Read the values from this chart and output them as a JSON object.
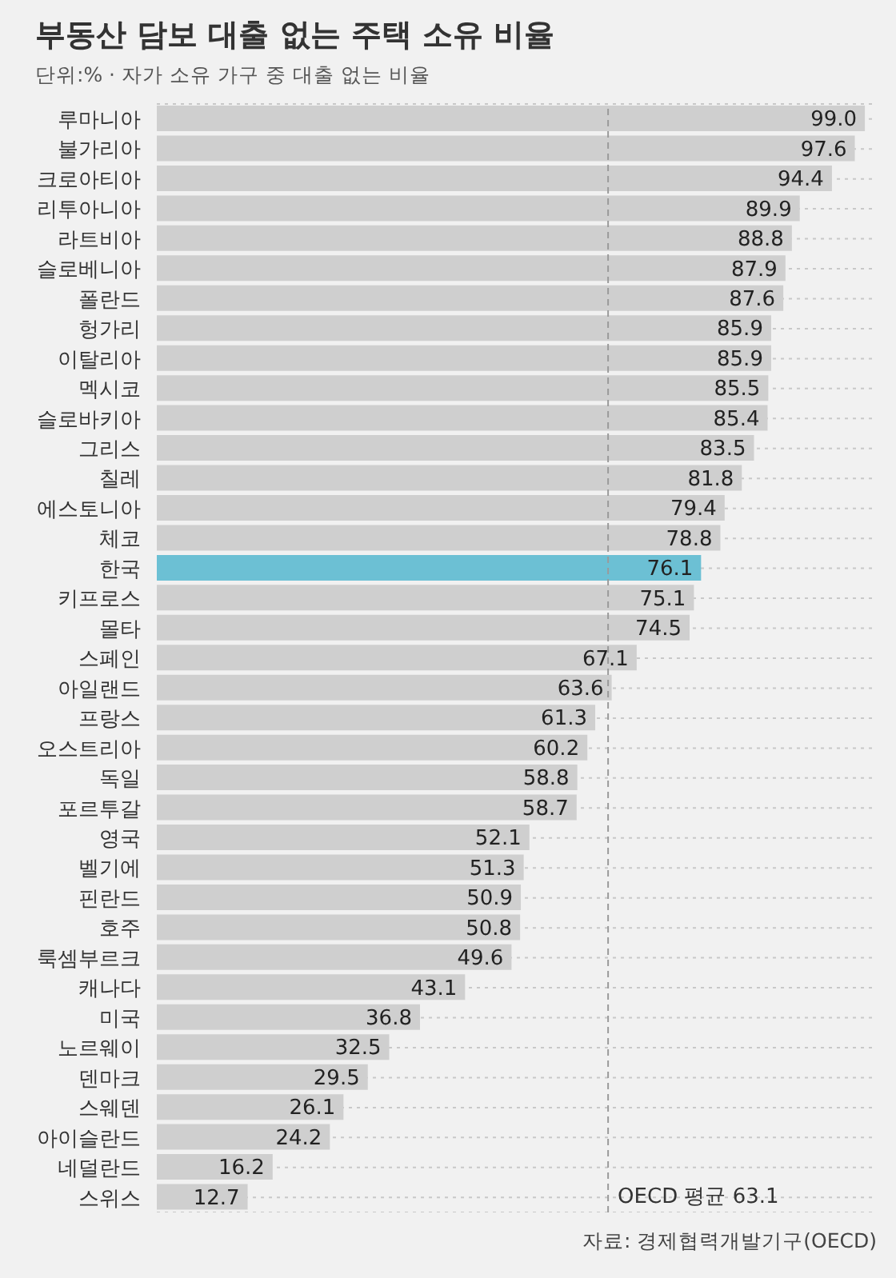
{
  "chart_data": {
    "type": "bar",
    "orientation": "horizontal",
    "title": "부동산 담보 대출 없는 주택 소유 비율",
    "subtitle": "단위:% · 자가 소유 가구 중 대출 없는 비율",
    "categories": [
      "루마니아",
      "불가리아",
      "크로아티아",
      "리투아니아",
      "라트비아",
      "슬로베니아",
      "폴란드",
      "헝가리",
      "이탈리아",
      "멕시코",
      "슬로바키아",
      "그리스",
      "칠레",
      "에스토니아",
      "체코",
      "한국",
      "키프로스",
      "몰타",
      "스페인",
      "아일랜드",
      "프랑스",
      "오스트리아",
      "독일",
      "포르투갈",
      "영국",
      "벨기에",
      "핀란드",
      "호주",
      "룩셈부르크",
      "캐나다",
      "미국",
      "노르웨이",
      "덴마크",
      "스웨덴",
      "아이슬란드",
      "네덜란드",
      "스위스"
    ],
    "values": [
      99.0,
      97.6,
      94.4,
      89.9,
      88.8,
      87.9,
      87.6,
      85.9,
      85.9,
      85.5,
      85.4,
      83.5,
      81.8,
      79.4,
      78.8,
      76.1,
      75.1,
      74.5,
      67.1,
      63.6,
      61.3,
      60.2,
      58.8,
      58.7,
      52.1,
      51.3,
      50.9,
      50.8,
      49.6,
      43.1,
      36.8,
      32.5,
      29.5,
      26.1,
      24.2,
      16.2,
      12.7
    ],
    "value_labels": [
      "99.0",
      "97.6",
      "94.4",
      "89.9",
      "88.8",
      "87.9",
      "87.6",
      "85.9",
      "85.9",
      "85.5",
      "85.4",
      "83.5",
      "81.8",
      "79.4",
      "78.8",
      "76.1",
      "75.1",
      "74.5",
      "67.1",
      "63.6",
      "61.3",
      "60.2",
      "58.8",
      "58.7",
      "52.1",
      "51.3",
      "50.9",
      "50.8",
      "49.6",
      "43.1",
      "36.8",
      "32.5",
      "29.5",
      "26.1",
      "24.2",
      "16.2",
      "12.7"
    ],
    "colors": [
      "#cfcfcf",
      "#cfcfcf",
      "#cfcfcf",
      "#cfcfcf",
      "#cfcfcf",
      "#cfcfcf",
      "#cfcfcf",
      "#cfcfcf",
      "#cfcfcf",
      "#cfcfcf",
      "#cfcfcf",
      "#cfcfcf",
      "#cfcfcf",
      "#cfcfcf",
      "#cfcfcf",
      "#6cc0d4",
      "#cfcfcf",
      "#cfcfcf",
      "#cfcfcf",
      "#cfcfcf",
      "#cfcfcf",
      "#cfcfcf",
      "#cfcfcf",
      "#cfcfcf",
      "#cfcfcf",
      "#cfcfcf",
      "#cfcfcf",
      "#cfcfcf",
      "#cfcfcf",
      "#cfcfcf",
      "#cfcfcf",
      "#cfcfcf",
      "#cfcfcf",
      "#cfcfcf",
      "#cfcfcf",
      "#cfcfcf",
      "#cfcfcf"
    ],
    "xlim": [
      0,
      100
    ],
    "grid": "y",
    "tick_labels": "y",
    "ref_lines": [
      {
        "axis": "x",
        "value": 63.1,
        "label": "OECD 평균 63.1",
        "color": "#9a9a9a",
        "line_style": "dashed"
      }
    ],
    "annotations": [
      "자료: 경제협력개발기구(OECD)"
    ]
  }
}
